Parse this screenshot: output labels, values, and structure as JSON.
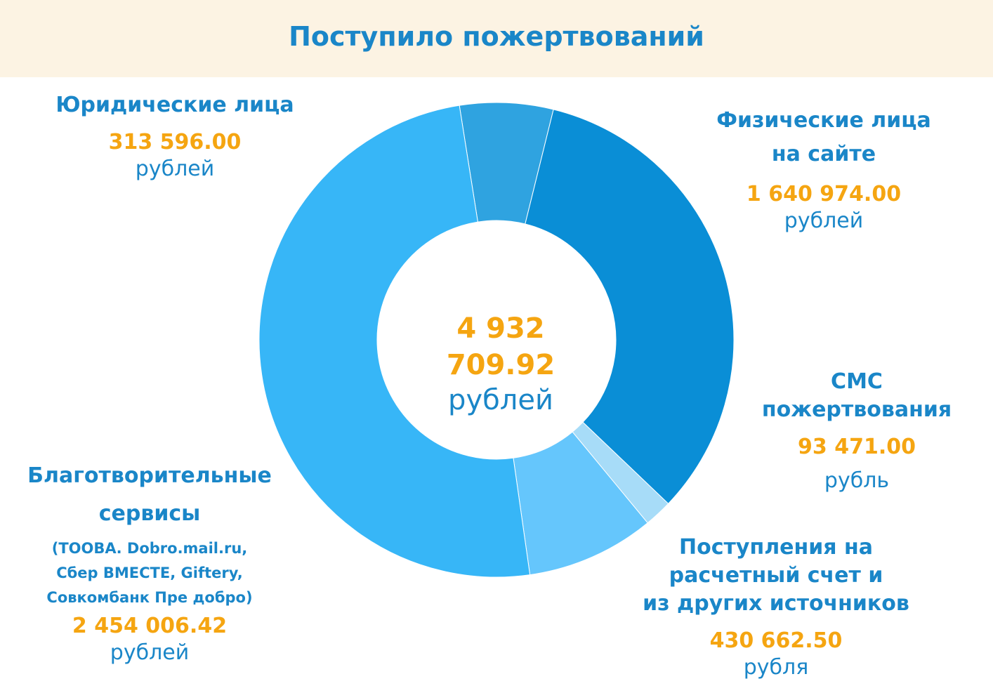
{
  "title": "Поступило пожертвований",
  "center": {
    "amount": "4 932 709.92",
    "unit": "рублей"
  },
  "segments": [
    {
      "name": "Юридические лица",
      "amount": "313 596.00",
      "unit": "рублей"
    },
    {
      "name_line1": "Физические лица",
      "name_line2": "на сайте",
      "amount": "1 640 974.00",
      "unit": "рублей"
    },
    {
      "name_line1": "СМС",
      "name_line2": "пожертвования",
      "amount": "93 471.00",
      "unit": "рубль"
    },
    {
      "name_line1": "Поступления на",
      "name_line2": "расчетный счет и",
      "name_line3": "из других источников",
      "amount": "430 662.50",
      "unit": "рубля"
    },
    {
      "name_line1": "Благотворительные",
      "name_line2": "сервисы",
      "details": [
        "(ТООВА. Dobro.mail.ru,",
        "Сбер ВМЕСТЕ, Giftery,",
        "Совкомбанк Пре добро)"
      ],
      "amount": "2 454 006.42",
      "unit": "рублей"
    }
  ],
  "chart_data": {
    "type": "pie",
    "title": "Поступило пожертвований",
    "total": 4932709.92,
    "categories": [
      "Юридические лица",
      "Физические лица на сайте",
      "СМС пожертвования",
      "Поступления на расчетный счет и из других источников",
      "Благотворительные сервисы"
    ],
    "values": [
      313596.0,
      1640974.0,
      93471.0,
      430662.5,
      2454006.42
    ],
    "colors": [
      "#2fa3e0",
      "#0a8ed6",
      "#a7dcf8",
      "#65c6fc",
      "#37b6f7"
    ],
    "legend": "none"
  }
}
